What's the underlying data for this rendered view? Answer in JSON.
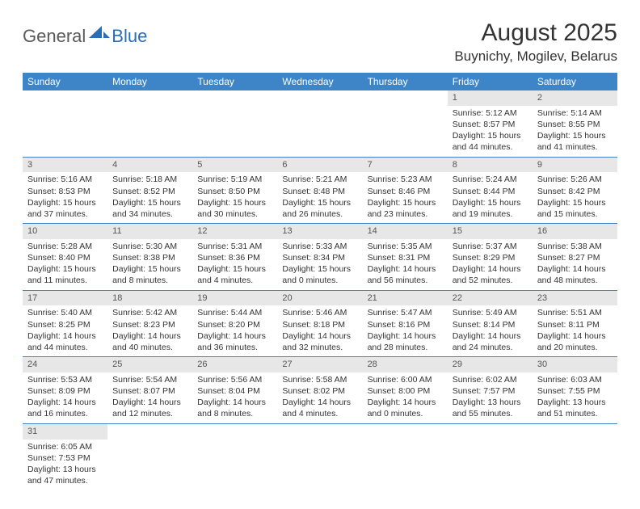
{
  "logo": {
    "general": "General",
    "blue": "Blue"
  },
  "title": "August 2025",
  "location": "Buynichy, Mogilev, Belarus",
  "colors": {
    "header_bg": "#3d85c6",
    "header_text": "#ffffff",
    "daynum_bg": "#e7e7e7",
    "row_border": "#3d85c6",
    "logo_blue": "#2a6db8",
    "logo_gray": "#5a5a5a"
  },
  "weekdays": [
    "Sunday",
    "Monday",
    "Tuesday",
    "Wednesday",
    "Thursday",
    "Friday",
    "Saturday"
  ],
  "weeks": [
    [
      null,
      null,
      null,
      null,
      null,
      {
        "n": "1",
        "sunrise": "Sunrise: 5:12 AM",
        "sunset": "Sunset: 8:57 PM",
        "daylight": "Daylight: 15 hours and 44 minutes."
      },
      {
        "n": "2",
        "sunrise": "Sunrise: 5:14 AM",
        "sunset": "Sunset: 8:55 PM",
        "daylight": "Daylight: 15 hours and 41 minutes."
      }
    ],
    [
      {
        "n": "3",
        "sunrise": "Sunrise: 5:16 AM",
        "sunset": "Sunset: 8:53 PM",
        "daylight": "Daylight: 15 hours and 37 minutes."
      },
      {
        "n": "4",
        "sunrise": "Sunrise: 5:18 AM",
        "sunset": "Sunset: 8:52 PM",
        "daylight": "Daylight: 15 hours and 34 minutes."
      },
      {
        "n": "5",
        "sunrise": "Sunrise: 5:19 AM",
        "sunset": "Sunset: 8:50 PM",
        "daylight": "Daylight: 15 hours and 30 minutes."
      },
      {
        "n": "6",
        "sunrise": "Sunrise: 5:21 AM",
        "sunset": "Sunset: 8:48 PM",
        "daylight": "Daylight: 15 hours and 26 minutes."
      },
      {
        "n": "7",
        "sunrise": "Sunrise: 5:23 AM",
        "sunset": "Sunset: 8:46 PM",
        "daylight": "Daylight: 15 hours and 23 minutes."
      },
      {
        "n": "8",
        "sunrise": "Sunrise: 5:24 AM",
        "sunset": "Sunset: 8:44 PM",
        "daylight": "Daylight: 15 hours and 19 minutes."
      },
      {
        "n": "9",
        "sunrise": "Sunrise: 5:26 AM",
        "sunset": "Sunset: 8:42 PM",
        "daylight": "Daylight: 15 hours and 15 minutes."
      }
    ],
    [
      {
        "n": "10",
        "sunrise": "Sunrise: 5:28 AM",
        "sunset": "Sunset: 8:40 PM",
        "daylight": "Daylight: 15 hours and 11 minutes."
      },
      {
        "n": "11",
        "sunrise": "Sunrise: 5:30 AM",
        "sunset": "Sunset: 8:38 PM",
        "daylight": "Daylight: 15 hours and 8 minutes."
      },
      {
        "n": "12",
        "sunrise": "Sunrise: 5:31 AM",
        "sunset": "Sunset: 8:36 PM",
        "daylight": "Daylight: 15 hours and 4 minutes."
      },
      {
        "n": "13",
        "sunrise": "Sunrise: 5:33 AM",
        "sunset": "Sunset: 8:34 PM",
        "daylight": "Daylight: 15 hours and 0 minutes."
      },
      {
        "n": "14",
        "sunrise": "Sunrise: 5:35 AM",
        "sunset": "Sunset: 8:31 PM",
        "daylight": "Daylight: 14 hours and 56 minutes."
      },
      {
        "n": "15",
        "sunrise": "Sunrise: 5:37 AM",
        "sunset": "Sunset: 8:29 PM",
        "daylight": "Daylight: 14 hours and 52 minutes."
      },
      {
        "n": "16",
        "sunrise": "Sunrise: 5:38 AM",
        "sunset": "Sunset: 8:27 PM",
        "daylight": "Daylight: 14 hours and 48 minutes."
      }
    ],
    [
      {
        "n": "17",
        "sunrise": "Sunrise: 5:40 AM",
        "sunset": "Sunset: 8:25 PM",
        "daylight": "Daylight: 14 hours and 44 minutes."
      },
      {
        "n": "18",
        "sunrise": "Sunrise: 5:42 AM",
        "sunset": "Sunset: 8:23 PM",
        "daylight": "Daylight: 14 hours and 40 minutes."
      },
      {
        "n": "19",
        "sunrise": "Sunrise: 5:44 AM",
        "sunset": "Sunset: 8:20 PM",
        "daylight": "Daylight: 14 hours and 36 minutes."
      },
      {
        "n": "20",
        "sunrise": "Sunrise: 5:46 AM",
        "sunset": "Sunset: 8:18 PM",
        "daylight": "Daylight: 14 hours and 32 minutes."
      },
      {
        "n": "21",
        "sunrise": "Sunrise: 5:47 AM",
        "sunset": "Sunset: 8:16 PM",
        "daylight": "Daylight: 14 hours and 28 minutes."
      },
      {
        "n": "22",
        "sunrise": "Sunrise: 5:49 AM",
        "sunset": "Sunset: 8:14 PM",
        "daylight": "Daylight: 14 hours and 24 minutes."
      },
      {
        "n": "23",
        "sunrise": "Sunrise: 5:51 AM",
        "sunset": "Sunset: 8:11 PM",
        "daylight": "Daylight: 14 hours and 20 minutes."
      }
    ],
    [
      {
        "n": "24",
        "sunrise": "Sunrise: 5:53 AM",
        "sunset": "Sunset: 8:09 PM",
        "daylight": "Daylight: 14 hours and 16 minutes."
      },
      {
        "n": "25",
        "sunrise": "Sunrise: 5:54 AM",
        "sunset": "Sunset: 8:07 PM",
        "daylight": "Daylight: 14 hours and 12 minutes."
      },
      {
        "n": "26",
        "sunrise": "Sunrise: 5:56 AM",
        "sunset": "Sunset: 8:04 PM",
        "daylight": "Daylight: 14 hours and 8 minutes."
      },
      {
        "n": "27",
        "sunrise": "Sunrise: 5:58 AM",
        "sunset": "Sunset: 8:02 PM",
        "daylight": "Daylight: 14 hours and 4 minutes."
      },
      {
        "n": "28",
        "sunrise": "Sunrise: 6:00 AM",
        "sunset": "Sunset: 8:00 PM",
        "daylight": "Daylight: 14 hours and 0 minutes."
      },
      {
        "n": "29",
        "sunrise": "Sunrise: 6:02 AM",
        "sunset": "Sunset: 7:57 PM",
        "daylight": "Daylight: 13 hours and 55 minutes."
      },
      {
        "n": "30",
        "sunrise": "Sunrise: 6:03 AM",
        "sunset": "Sunset: 7:55 PM",
        "daylight": "Daylight: 13 hours and 51 minutes."
      }
    ],
    [
      {
        "n": "31",
        "sunrise": "Sunrise: 6:05 AM",
        "sunset": "Sunset: 7:53 PM",
        "daylight": "Daylight: 13 hours and 47 minutes."
      },
      null,
      null,
      null,
      null,
      null,
      null
    ]
  ]
}
